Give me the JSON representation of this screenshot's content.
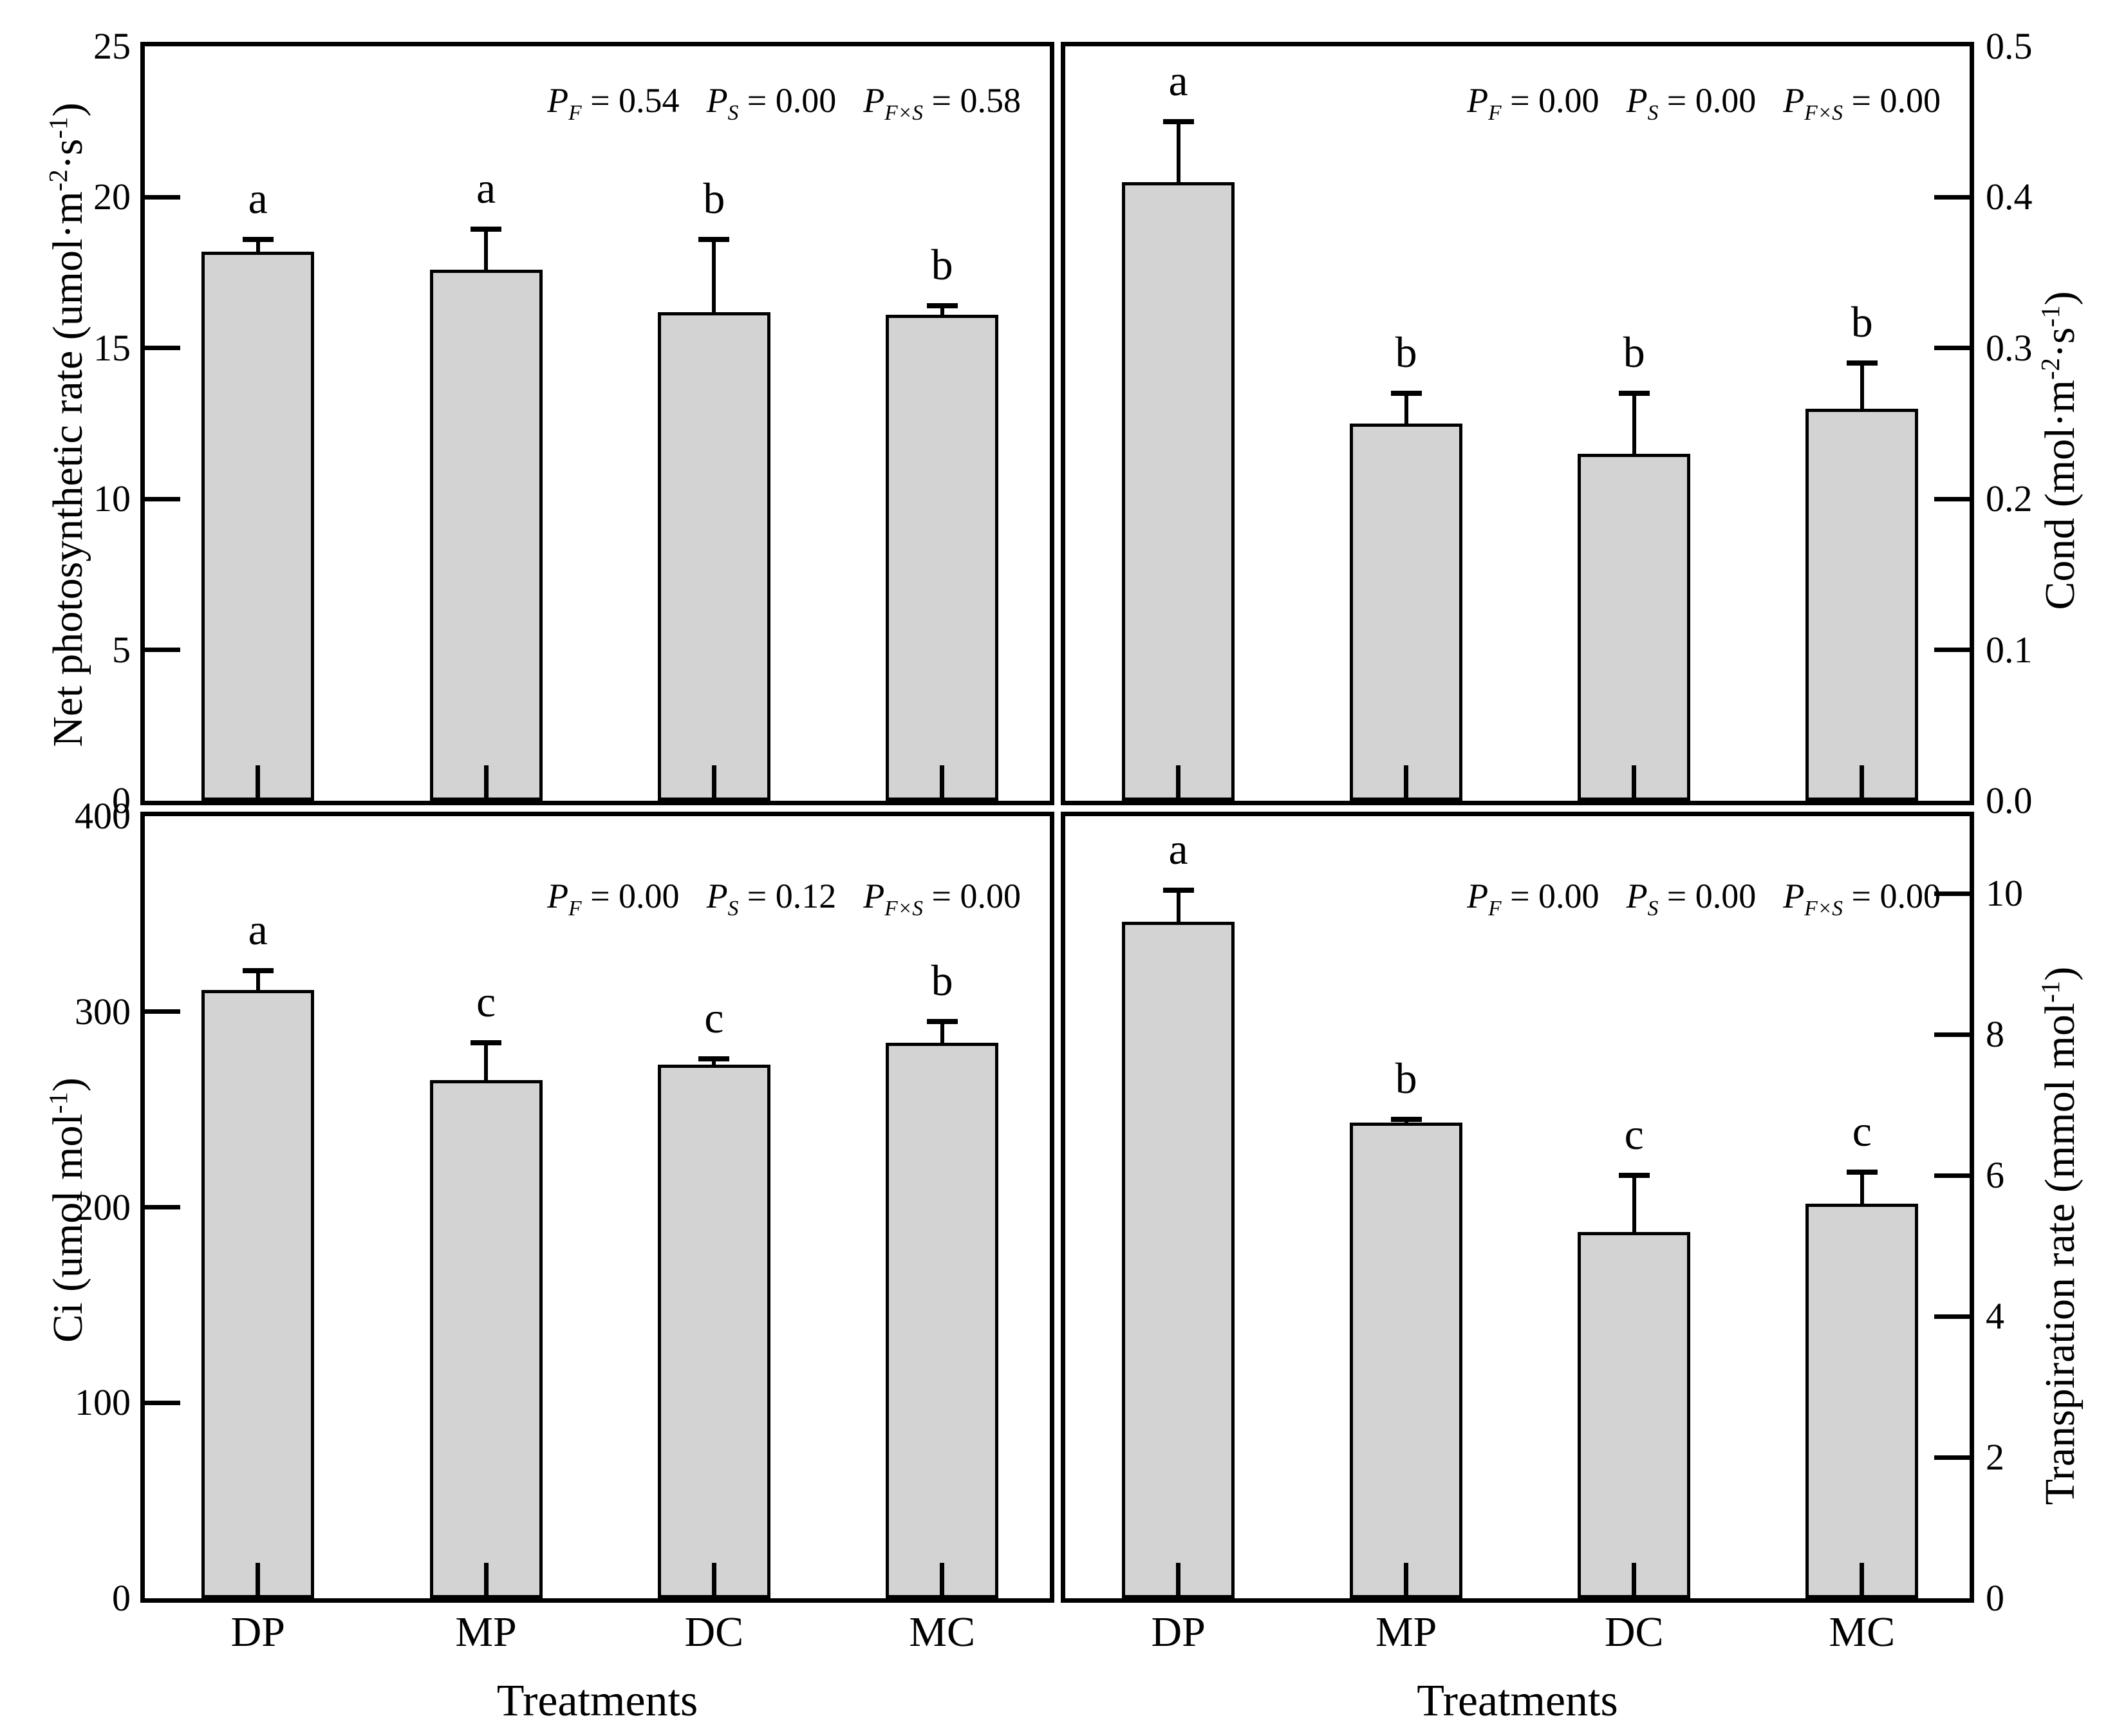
{
  "figure": {
    "background": "#ffffff",
    "bar_fill": "#d3d3d3",
    "line_color": "#000000",
    "x_axis_title": "Treatments"
  },
  "chart_data": [
    {
      "id": "net-photosynthetic-rate",
      "type": "bar",
      "panel": "top-left",
      "y_axis_side": "left",
      "ylabel": "Net photosynthetic rate (umol·m⁻²·s⁻¹)",
      "ylim": [
        0,
        25
      ],
      "yticks": [
        0,
        5,
        10,
        15,
        20,
        25
      ],
      "ytick_labels": [
        "0",
        "5",
        "10",
        "15",
        "20",
        "25"
      ],
      "categories": [
        "DP",
        "MP",
        "DC",
        "MC"
      ],
      "values": [
        18.2,
        17.6,
        16.2,
        16.1
      ],
      "errors_upper": [
        0.4,
        1.35,
        2.4,
        0.3
      ],
      "sig_letters": [
        "a",
        "a",
        "b",
        "b"
      ],
      "p_values": [
        {
          "factor": "F",
          "value": "0.54"
        },
        {
          "factor": "S",
          "value": "0.00"
        },
        {
          "factor": "F×S",
          "value": "0.58"
        }
      ],
      "grid": false,
      "legend": "none"
    },
    {
      "id": "cond",
      "type": "bar",
      "panel": "top-right",
      "y_axis_side": "right",
      "ylabel": "Cond (mol·m⁻²·s⁻¹)",
      "ylim": [
        0,
        0.5
      ],
      "yticks": [
        0,
        0.1,
        0.2,
        0.3,
        0.4,
        0.5
      ],
      "ytick_labels": [
        "0.0",
        "0.1",
        "0.2",
        "0.3",
        "0.4",
        "0.5"
      ],
      "categories": [
        "DP",
        "MP",
        "DC",
        "MC"
      ],
      "values": [
        0.41,
        0.25,
        0.23,
        0.26
      ],
      "errors_upper": [
        0.04,
        0.02,
        0.04,
        0.03
      ],
      "sig_letters": [
        "a",
        "b",
        "b",
        "b"
      ],
      "p_values": [
        {
          "factor": "F",
          "value": "0.00"
        },
        {
          "factor": "S",
          "value": "0.00"
        },
        {
          "factor": "F×S",
          "value": "0.00"
        }
      ],
      "grid": false,
      "legend": "none"
    },
    {
      "id": "ci",
      "type": "bar",
      "panel": "bottom-left",
      "y_axis_side": "left",
      "ylabel": "Ci (umol mol⁻¹)",
      "xlabel": "Treatments",
      "ylim": [
        0,
        400
      ],
      "yticks": [
        0,
        100,
        200,
        300,
        400
      ],
      "ytick_labels": [
        "0",
        "100",
        "200",
        "300",
        "400"
      ],
      "categories": [
        "DP",
        "MP",
        "DC",
        "MC"
      ],
      "values": [
        311,
        265,
        273,
        284
      ],
      "errors_upper": [
        10,
        19,
        3,
        11
      ],
      "sig_letters": [
        "a",
        "c",
        "c",
        "b"
      ],
      "p_values": [
        {
          "factor": "F",
          "value": "0.00"
        },
        {
          "factor": "S",
          "value": "0.12"
        },
        {
          "factor": "F×S",
          "value": "0.00"
        }
      ],
      "grid": false,
      "legend": "none"
    },
    {
      "id": "transpiration-rate",
      "type": "bar",
      "panel": "bottom-right",
      "y_axis_side": "right",
      "ylabel": "Transpiration rate (mmol mol⁻¹)",
      "xlabel": "Treatments",
      "ylim": [
        0,
        11.1
      ],
      "yticks": [
        0,
        2,
        4,
        6,
        8,
        10
      ],
      "ytick_labels": [
        "0",
        "2",
        "4",
        "6",
        "8",
        "10"
      ],
      "categories": [
        "DP",
        "MP",
        "DC",
        "MC"
      ],
      "values": [
        9.6,
        6.75,
        5.2,
        5.6
      ],
      "errors_upper": [
        0.45,
        0.05,
        0.8,
        0.45
      ],
      "sig_letters": [
        "a",
        "b",
        "c",
        "c"
      ],
      "p_values": [
        {
          "factor": "F",
          "value": "0.00"
        },
        {
          "factor": "S",
          "value": "0.00"
        },
        {
          "factor": "F×S",
          "value": "0.00"
        }
      ],
      "grid": false,
      "legend": "none"
    }
  ]
}
